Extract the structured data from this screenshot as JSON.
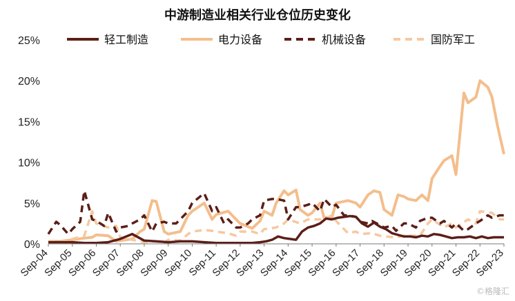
{
  "chart_data": {
    "type": "line",
    "title": "中游制造业相关行业仓位历史变化",
    "xlabel": "",
    "ylabel": "",
    "ylim": [
      0,
      25
    ],
    "y_ticks": [
      "0%",
      "5%",
      "10%",
      "15%",
      "20%",
      "25%"
    ],
    "x_ticks": [
      "Sep-04",
      "Sep-05",
      "Sep-06",
      "Sep-07",
      "Sep-08",
      "Sep-09",
      "Sep-10",
      "Sep-11",
      "Sep-12",
      "Sep-13",
      "Sep-14",
      "Sep-15",
      "Sep-16",
      "Sep-17",
      "Sep-18",
      "Sep-19",
      "Sep-20",
      "Sep-21",
      "Sep-22",
      "Sep-23"
    ],
    "grid": false,
    "legend_position": "top",
    "x_start": "2004-09",
    "x_end": "2023-09",
    "series": [
      {
        "name": "轻工制造",
        "color": "#5c1e18",
        "dash": "solid",
        "x": [
          2004.67,
          2005.67,
          2006.17,
          2006.67,
          2007.17,
          2007.67,
          2008.17,
          2008.67,
          2009.17,
          2009.67,
          2010.17,
          2010.67,
          2011.17,
          2011.67,
          2012.17,
          2012.67,
          2013.17,
          2013.5,
          2013.75,
          2014.0,
          2014.25,
          2014.5,
          2014.75,
          2015.0,
          2015.25,
          2015.5,
          2015.75,
          2016.0,
          2016.25,
          2016.5,
          2016.75,
          2017.0,
          2017.25,
          2017.5,
          2017.75,
          2018.0,
          2018.25,
          2018.5,
          2018.75,
          2019.0,
          2019.25,
          2019.5,
          2019.75,
          2020.0,
          2020.25,
          2020.5,
          2020.75,
          2021.0,
          2021.25,
          2021.5,
          2021.75,
          2022.0,
          2022.25,
          2022.5,
          2022.75,
          2023.0,
          2023.25,
          2023.5,
          2023.67
        ],
        "values": [
          0.2,
          0.2,
          0.1,
          0.1,
          0.2,
          0.6,
          1.2,
          0.4,
          0.3,
          0.2,
          0.3,
          0.3,
          0.2,
          0.1,
          0.1,
          0.1,
          0.1,
          0.2,
          0.3,
          0.5,
          0.9,
          0.7,
          0.6,
          0.5,
          1.5,
          2.0,
          2.2,
          2.5,
          3.1,
          3.0,
          3.2,
          3.3,
          3.4,
          3.3,
          2.5,
          2.1,
          2.6,
          2.1,
          1.8,
          1.3,
          1.1,
          0.9,
          0.9,
          0.8,
          1.0,
          0.9,
          1.2,
          1.1,
          0.9,
          0.7,
          0.8,
          0.8,
          0.9,
          0.7,
          0.9,
          0.7,
          0.8,
          0.8,
          0.8
        ]
      },
      {
        "name": "电力设备",
        "color": "#f3be8c",
        "dash": "solid",
        "x": [
          2004.67,
          2005.17,
          2005.67,
          2006.17,
          2006.5,
          2006.67,
          2007.17,
          2007.5,
          2007.67,
          2008.17,
          2008.5,
          2008.67,
          2009.0,
          2009.17,
          2009.5,
          2009.67,
          2010.17,
          2010.5,
          2010.67,
          2011.17,
          2011.5,
          2011.67,
          2012.17,
          2012.5,
          2012.67,
          2013.17,
          2013.5,
          2013.67,
          2014.0,
          2014.17,
          2014.5,
          2014.67,
          2015.0,
          2015.17,
          2015.5,
          2015.67,
          2016.0,
          2016.17,
          2016.5,
          2016.67,
          2017.0,
          2017.17,
          2017.5,
          2017.67,
          2018.0,
          2018.25,
          2018.5,
          2018.67,
          2019.0,
          2019.25,
          2019.5,
          2019.67,
          2020.0,
          2020.25,
          2020.5,
          2020.67,
          2021.0,
          2021.17,
          2021.5,
          2021.67,
          2022.0,
          2022.17,
          2022.5,
          2022.67,
          2023.0,
          2023.17,
          2023.4,
          2023.67
        ],
        "values": [
          0.3,
          0.3,
          0.5,
          0.7,
          0.8,
          1.1,
          1.0,
          0.3,
          0.4,
          0.6,
          1.5,
          1.8,
          5.3,
          5.2,
          1.5,
          1.2,
          1.5,
          3.5,
          4.0,
          5.0,
          3.0,
          3.6,
          4.0,
          3.0,
          2.5,
          1.9,
          2.8,
          4.0,
          3.5,
          5.0,
          6.5,
          6.0,
          6.6,
          4.2,
          3.5,
          3.8,
          5.0,
          3.2,
          3.3,
          5.0,
          5.2,
          5.3,
          5.0,
          4.5,
          6.0,
          6.5,
          6.3,
          4.2,
          3.5,
          6.0,
          5.8,
          5.5,
          5.3,
          6.0,
          5.3,
          8.0,
          9.5,
          10.2,
          10.8,
          8.5,
          18.5,
          17.3,
          18.0,
          20.0,
          19.2,
          18.0,
          14.5,
          11.0
        ]
      },
      {
        "name": "机械设备",
        "color": "#5c1e18",
        "dash": "dashed",
        "x": [
          2004.67,
          2005.0,
          2005.17,
          2005.5,
          2005.67,
          2006.0,
          2006.17,
          2006.5,
          2006.67,
          2007.0,
          2007.17,
          2007.5,
          2007.67,
          2008.0,
          2008.17,
          2008.5,
          2008.67,
          2009.0,
          2009.17,
          2009.5,
          2009.67,
          2010.0,
          2010.17,
          2010.5,
          2010.67,
          2011.0,
          2011.17,
          2011.5,
          2011.67,
          2012.0,
          2012.17,
          2012.5,
          2012.67,
          2013.0,
          2013.17,
          2013.5,
          2013.67,
          2014.0,
          2014.17,
          2014.5,
          2014.67,
          2015.0,
          2015.17,
          2015.5,
          2015.67,
          2016.0,
          2016.17,
          2016.5,
          2016.67,
          2017.0,
          2017.17,
          2017.5,
          2017.67,
          2018.0,
          2018.17,
          2018.5,
          2018.67,
          2019.0,
          2019.17,
          2019.5,
          2019.67,
          2020.0,
          2020.17,
          2020.5,
          2020.67,
          2021.0,
          2021.17,
          2021.5,
          2021.67,
          2022.0,
          2022.17,
          2022.5,
          2022.67,
          2023.0,
          2023.17,
          2023.5,
          2023.67
        ],
        "values": [
          1.2,
          2.7,
          2.3,
          1.2,
          1.8,
          2.7,
          6.5,
          3.0,
          2.8,
          2.2,
          3.8,
          1.5,
          2.0,
          2.2,
          2.5,
          3.0,
          3.5,
          1.5,
          2.5,
          2.7,
          2.5,
          2.5,
          3.0,
          4.0,
          5.0,
          5.8,
          6.2,
          4.0,
          4.5,
          2.5,
          3.0,
          2.0,
          2.0,
          2.5,
          3.0,
          3.5,
          5.3,
          5.5,
          5.5,
          5.3,
          3.0,
          4.5,
          4.5,
          4.8,
          5.0,
          4.0,
          5.5,
          4.5,
          4.8,
          3.5,
          3.5,
          3.3,
          2.7,
          2.5,
          2.8,
          2.3,
          2.0,
          2.2,
          1.6,
          2.5,
          2.5,
          2.0,
          2.8,
          3.2,
          3.2,
          2.5,
          2.8,
          2.0,
          2.5,
          1.6,
          1.8,
          2.5,
          2.8,
          3.5,
          3.2,
          3.5,
          3.5
        ]
      },
      {
        "name": "国防军工",
        "color": "#f6c8a0",
        "dash": "dashed",
        "x": [
          2004.67,
          2005.17,
          2005.67,
          2006.17,
          2006.5,
          2006.67,
          2007.17,
          2007.5,
          2007.67,
          2008.17,
          2008.5,
          2008.67,
          2009.17,
          2009.5,
          2009.67,
          2010.17,
          2010.5,
          2010.67,
          2011.17,
          2011.5,
          2011.67,
          2012.17,
          2012.5,
          2012.67,
          2013.17,
          2013.5,
          2013.67,
          2014.17,
          2014.5,
          2014.67,
          2015.17,
          2015.5,
          2015.67,
          2016.17,
          2016.5,
          2016.67,
          2017.17,
          2017.5,
          2017.67,
          2018.17,
          2018.5,
          2018.67,
          2019.17,
          2019.5,
          2019.67,
          2020.17,
          2020.5,
          2020.67,
          2021.17,
          2021.5,
          2021.67,
          2022.17,
          2022.5,
          2022.67,
          2023.17,
          2023.5,
          2023.67
        ],
        "values": [
          0.3,
          0.3,
          0.6,
          1.0,
          4.0,
          2.5,
          2.0,
          2.2,
          0.8,
          0.5,
          0.3,
          0.2,
          0.3,
          0.1,
          0.5,
          0.4,
          1.2,
          1.5,
          1.7,
          1.6,
          1.5,
          1.3,
          1.0,
          1.5,
          1.5,
          1.2,
          1.8,
          2.0,
          2.5,
          3.0,
          2.5,
          3.0,
          3.0,
          3.0,
          3.5,
          2.8,
          1.3,
          1.5,
          1.2,
          1.3,
          1.0,
          0.9,
          0.8,
          1.0,
          1.0,
          1.0,
          2.5,
          3.0,
          2.0,
          2.5,
          2.0,
          3.0,
          2.5,
          4.0,
          3.8,
          3.0,
          3.0
        ]
      }
    ]
  },
  "watermark": "©格隆汇"
}
